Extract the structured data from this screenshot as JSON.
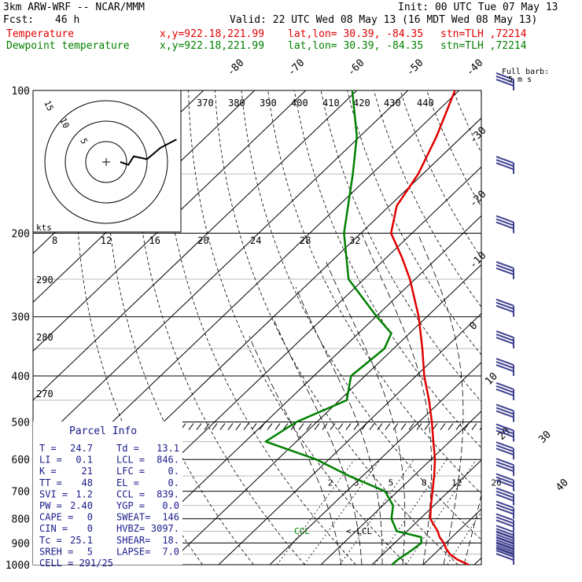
{
  "header": {
    "model": "3km ARW-WRF -- NCAR/MMM",
    "init": "Init: 00 UTC Tue 07 May 13",
    "fcst_label": "Fcst:",
    "fcst_value": "46 h",
    "valid": "Valid: 22 UTC Wed 08 May 13 (16 MDT Wed 08 May 13)"
  },
  "legend": [
    {
      "name": "Temperature",
      "coords": "x,y=922.18,221.99",
      "latlon": "lat,lon= 30.39, -84.35",
      "stn": "stn=TLH ,72214",
      "color": "#e00000"
    },
    {
      "name": "Dewpoint temperature",
      "coords": "x,y=922.18,221.99",
      "latlon": "lat,lon= 30.39, -84.35",
      "stn": "stn=TLH ,72214",
      "color": "#008000"
    }
  ],
  "barb_scale": {
    "line1": "Full barb:",
    "line2": "5 m s"
  },
  "hodograph": {
    "ring_labels": [
      "15",
      "10",
      "5"
    ],
    "units": "kts"
  },
  "parcel_info": {
    "title": "Parcel Info",
    "rows": [
      [
        "T  =",
        "24.7",
        "Td  =",
        "13.1"
      ],
      [
        "LI =",
        "0.1",
        "LCL =",
        "846."
      ],
      [
        "K  =",
        "21",
        "LFC =",
        "0."
      ],
      [
        "TT =",
        "48",
        "EL  =",
        "0."
      ],
      [
        "SVI =",
        "1.2",
        "CCL =",
        "839."
      ],
      [
        "PW =",
        "2.40",
        "YGP =",
        "0.0"
      ],
      [
        "CAPE =",
        "0",
        "SWEAT=",
        "146"
      ],
      [
        "CIN =",
        "0",
        "HVBZ=",
        "3097."
      ],
      [
        "Tc =",
        "25.1",
        "SHEAR=",
        "18."
      ],
      [
        "SREH =",
        "5",
        "LAPSE=",
        "7.0"
      ]
    ],
    "cell": "CELL = 291/25"
  },
  "markers": {
    "ccl": "CCL",
    "lcl": "<-LCL"
  },
  "colors": {
    "temperature": "#e00000",
    "dewpoint": "#008000",
    "barbs": "#404090",
    "grid": "#000000",
    "moist": "#000000"
  },
  "chart_data": {
    "type": "line",
    "title": "",
    "y_axis": {
      "label": "",
      "scale": "log-pressure",
      "ylim": [
        1000,
        100
      ],
      "ticks": [
        100,
        200,
        300,
        400,
        500,
        600,
        700,
        800,
        900,
        1000
      ]
    },
    "isotherm_labels": [
      -80,
      -70,
      -60,
      -50,
      -40,
      -30,
      -20,
      -10,
      0,
      10,
      20,
      30,
      40
    ],
    "theta_labels": [
      370,
      380,
      390,
      400,
      410,
      420,
      430,
      440,
      290,
      280,
      270
    ],
    "mixing_ratio_labels": [
      "2",
      "3",
      "5",
      "8",
      "12",
      "20"
    ],
    "hodograph_speed_labels": [
      8,
      12,
      16,
      20,
      24,
      28,
      32
    ],
    "series": [
      {
        "name": "Temperature",
        "color": "#e00000",
        "points": [
          {
            "p": 1000,
            "t": 28.9
          },
          {
            "p": 975,
            "t": 25.6
          },
          {
            "p": 950,
            "t": 23.1
          },
          {
            "p": 925,
            "t": 21.2
          },
          {
            "p": 900,
            "t": 19.6
          },
          {
            "p": 875,
            "t": 17.6
          },
          {
            "p": 850,
            "t": 16.0
          },
          {
            "p": 800,
            "t": 12.0
          },
          {
            "p": 750,
            "t": 9.4
          },
          {
            "p": 700,
            "t": 6.8
          },
          {
            "p": 650,
            "t": 4.0
          },
          {
            "p": 600,
            "t": 0.8
          },
          {
            "p": 550,
            "t": -3.2
          },
          {
            "p": 500,
            "t": -7.5
          },
          {
            "p": 450,
            "t": -12.5
          },
          {
            "p": 400,
            "t": -18.4
          },
          {
            "p": 350,
            "t": -24.4
          },
          {
            "p": 300,
            "t": -31.6
          },
          {
            "p": 250,
            "t": -41.0
          },
          {
            "p": 225,
            "t": -47.0
          },
          {
            "p": 200,
            "t": -54.1
          },
          {
            "p": 175,
            "t": -58.6
          },
          {
            "p": 150,
            "t": -60.9
          },
          {
            "p": 125,
            "t": -65.0
          },
          {
            "p": 100,
            "t": -70.8
          }
        ]
      },
      {
        "name": "Dewpoint temperature",
        "color": "#008000",
        "points": [
          {
            "p": 1000,
            "t": 13.9
          },
          {
            "p": 975,
            "t": 14.0
          },
          {
            "p": 950,
            "t": 14.5
          },
          {
            "p": 925,
            "t": 14.9
          },
          {
            "p": 900,
            "t": 15.2
          },
          {
            "p": 875,
            "t": 14.0
          },
          {
            "p": 850,
            "t": 8.0
          },
          {
            "p": 800,
            "t": 4.4
          },
          {
            "p": 750,
            "t": 2.0
          },
          {
            "p": 700,
            "t": -2.5
          },
          {
            "p": 650,
            "t": -12.6
          },
          {
            "p": 600,
            "t": -22.4
          },
          {
            "p": 550,
            "t": -36.0
          },
          {
            "p": 500,
            "t": -34.0
          },
          {
            "p": 450,
            "t": -28.6
          },
          {
            "p": 400,
            "t": -32.7
          },
          {
            "p": 350,
            "t": -31.8
          },
          {
            "p": 325,
            "t": -33.6
          },
          {
            "p": 300,
            "t": -39.8
          },
          {
            "p": 250,
            "t": -53.0
          },
          {
            "p": 200,
            "t": -63.3
          },
          {
            "p": 150,
            "t": -73.7
          },
          {
            "p": 125,
            "t": -80.6
          },
          {
            "p": 100,
            "t": -90.9
          }
        ]
      }
    ],
    "hodograph": [
      {
        "u": 0,
        "v": 0
      },
      {
        "u": 3,
        "v": 1
      },
      {
        "u": 5,
        "v": -2
      },
      {
        "u": 10,
        "v": -1
      },
      {
        "u": 15,
        "v": -5
      },
      {
        "u": 21,
        "v": -8
      }
    ],
    "wind_barbs": {
      "units": "m s-1",
      "levels": [
        100,
        150,
        200,
        250,
        300,
        350,
        400,
        450,
        500,
        550,
        600,
        650,
        700,
        750,
        800,
        850,
        900,
        925,
        950,
        975,
        1000
      ]
    },
    "grid": true,
    "legend_position": "top-left"
  }
}
